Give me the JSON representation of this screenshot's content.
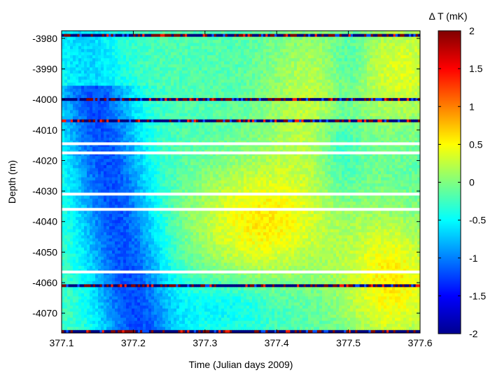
{
  "chart_data": {
    "type": "heatmap",
    "title": "",
    "xlabel": "Time (Julian days 2009)",
    "ylabel": "Depth (m)",
    "xlim": [
      377.1,
      377.6
    ],
    "ylim": [
      -4076.5,
      -3977.5
    ],
    "x_ticks": [
      "377.1",
      "377.2",
      "377.3",
      "377.4",
      "377.5",
      "377.6"
    ],
    "y_ticks": [
      "-3980",
      "-3990",
      "-4000",
      "-4010",
      "-4020",
      "-4030",
      "-4040",
      "-4050",
      "-4060",
      "-4070"
    ],
    "grid": false,
    "colormap": "jet",
    "colorbar": {
      "label": "Δ T (mK)",
      "range": [
        -2,
        2
      ],
      "ticks": [
        "2",
        "1.5",
        "1",
        "0.5",
        "0",
        "-0.5",
        "-1",
        "-1.5",
        "-2"
      ]
    },
    "gap_depths_m": [
      -4014.5,
      -4017.5,
      -4031,
      -4036,
      -4056.5
    ],
    "noisy_depths_m": [
      -3979,
      -4000,
      -4007,
      -4061,
      -4076
    ],
    "description_values": {
      "background_range_mK": [
        -1.5,
        0.8
      ]
    }
  },
  "colors": {
    "axis": "#000000",
    "gap": "#ffffff"
  }
}
